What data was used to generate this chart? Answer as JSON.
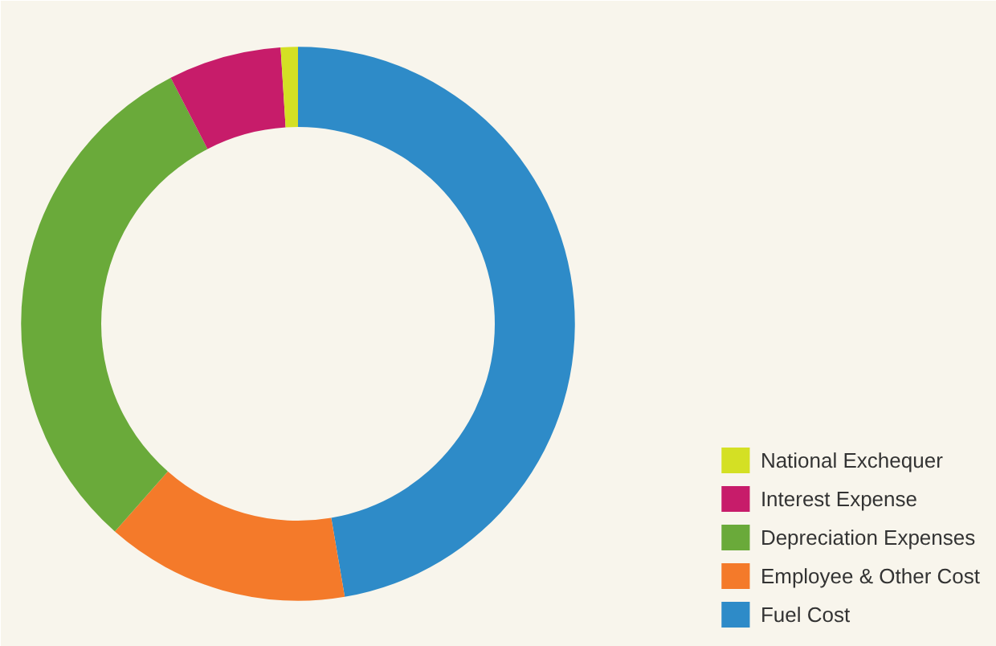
{
  "chart_data": {
    "type": "donut",
    "categories": [
      "Fuel Cost",
      "Employee & Other Cost",
      "Depreciation Expenses",
      "Interest Expense",
      "National Exchequer"
    ],
    "values": [
      47.3,
      14.2,
      30.9,
      6.6,
      1.0
    ],
    "colors": [
      "#2e8bc8",
      "#f47a2a",
      "#6aaa3a",
      "#c71c6a",
      "#d4e024"
    ],
    "legend": "bottom right"
  }
}
